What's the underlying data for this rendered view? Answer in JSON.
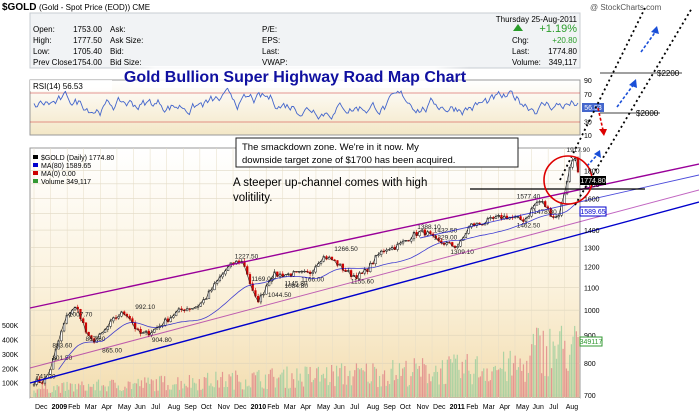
{
  "header": {
    "symbol_title": "$GOLD",
    "symbol_desc": "(Gold - Spot Price (EOD)) CME",
    "watermark": "@ StockCharts.com",
    "date": "Thursday 25-Aug-2011",
    "quote_left": [
      {
        "label": "Open:",
        "value": "1753.00"
      },
      {
        "label": "High:",
        "value": "1777.50"
      },
      {
        "label": "Low:",
        "value": "1705.40"
      },
      {
        "label": "Prev Close:",
        "value": "1754.00"
      }
    ],
    "quote_mid": [
      "Ask:",
      "Ask Size:",
      "Bid:",
      "Bid Size:"
    ],
    "quote_mid_values": [
      "",
      "",
      "",
      ""
    ],
    "quote_right_labels": [
      "P/E:",
      "EPS:",
      "Last:",
      "VWAP:"
    ],
    "change_pct": "+1.19%",
    "change_rows": [
      {
        "label": "Chg:",
        "value": "+20.80"
      },
      {
        "label": "Last:",
        "value": "1774.80"
      },
      {
        "label": "Volume:",
        "value": "349,117"
      }
    ]
  },
  "banner_title": "Gold Bullion Super Highway Road Map Chart",
  "rsi": {
    "label": "RSI(14) 56.53",
    "axis_ticks": [
      "90",
      "70",
      "50",
      "30",
      "10"
    ],
    "current_value": "56.53"
  },
  "price_legend": [
    {
      "text": "$GOLD (Daily) 1774.80",
      "color": "#000000"
    },
    {
      "text": "MA(80) 1589.65",
      "color": "#0000cc"
    },
    {
      "text": "MA(0) 0.00",
      "color": "#cc0000"
    },
    {
      "text": "Volume 349,117",
      "color": "#339933"
    }
  ],
  "annotations": {
    "smackdown_line1": "The smackdown zone.  We're in it now.  My",
    "smackdown_line2": "downside target zone of $1700 has been acquired.",
    "channel_line1": "A steeper up-channel comes with high",
    "channel_line2": "volitility.",
    "target_2200": "$2200",
    "target_2000": "$2000"
  },
  "price_axis": {
    "ticks": [
      "1800",
      "1700",
      "1600",
      "1500",
      "1400",
      "1300",
      "1200",
      "1100",
      "1000",
      "900",
      "800",
      "700"
    ],
    "last_badge": "1774.80",
    "ma_badge": "1589.65"
  },
  "volume_axis": {
    "ticks": [
      "500K",
      "400K",
      "300K",
      "200K",
      "100K"
    ],
    "badge": "349117"
  },
  "x_axis_labels": [
    "Dec",
    "2009",
    "Feb",
    "Mar",
    "Apr",
    "May",
    "Jun",
    "Jul",
    "Aug",
    "Sep",
    "Oct",
    "Nov",
    "Dec",
    "2010",
    "Feb",
    "Mar",
    "Apr",
    "May",
    "Jun",
    "Jul",
    "Aug",
    "Sep",
    "Oct",
    "Nov",
    "Dec",
    "2011",
    "Feb",
    "Mar",
    "Apr",
    "May",
    "Jun",
    "Jul",
    "Aug"
  ],
  "colors": {
    "price_panel_bg": "#faf0d8",
    "candle_up": "#ffffff",
    "candle_down": "#cc0000",
    "ma_line": "#0000cc",
    "channel_purple": "#990099",
    "channel_blue": "#0000cc",
    "rsi_line": "#4466cc",
    "highlight_red": "#dd0000"
  },
  "chart_data": {
    "type": "line",
    "title": "Gold Bullion Super Highway Road Map Chart",
    "subtitle": "$GOLD (Gold - Spot Price (EOD)) CME",
    "xlabel": "",
    "ylabel": "",
    "ylim": [
      700,
      1900
    ],
    "x": [
      "2008-12",
      "2009-02",
      "2009-03",
      "2009-05",
      "2009-06",
      "2009-09",
      "2009-12",
      "2010-01",
      "2010-02",
      "2010-04",
      "2010-05",
      "2010-07",
      "2010-09",
      "2010-11",
      "2010-12",
      "2011-01",
      "2011-02",
      "2011-04",
      "2011-05",
      "2011-06",
      "2011-07",
      "2011-08-22",
      "2011-08-25"
    ],
    "series": [
      {
        "name": "$GOLD",
        "values": [
          741.2,
          1007.7,
          880.0,
          987.0,
          904.8,
          1010.0,
          1227.5,
          1044.5,
          1160.0,
          1166.0,
          1249.0,
          1155.6,
          1300.0,
          1388.0,
          1329.0,
          1309.1,
          1432.5,
          1480.0,
          1462.5,
          1577.4,
          1478.3,
          1917.9,
          1774.8
        ]
      }
    ],
    "point_labels": [
      {
        "x": "2008-12",
        "value": 741.2,
        "label": "741.20"
      },
      {
        "x": "2009-01",
        "value": 883.6,
        "label": "883.60"
      },
      {
        "x": "2009-01",
        "value": 801.5,
        "label": "801.50"
      },
      {
        "x": "2009-02",
        "value": 1007.7,
        "label": "1007.70"
      },
      {
        "x": "2009-03",
        "value": 867.6,
        "label": "867.60"
      },
      {
        "x": "2009-04",
        "value": 865.0,
        "label": "865.00"
      },
      {
        "x": "2009-06",
        "value": 992.1,
        "label": "992.10"
      },
      {
        "x": "2009-07",
        "value": 904.8,
        "label": "904.80"
      },
      {
        "x": "2009-12",
        "value": 1227.5,
        "label": "1227.50"
      },
      {
        "x": "2010-01",
        "value": 1169.0,
        "label": "1169.00"
      },
      {
        "x": "2010-02",
        "value": 1044.5,
        "label": "1044.50"
      },
      {
        "x": "2010-03",
        "value": 1145.8,
        "label": "1145.80"
      },
      {
        "x": "2010-03",
        "value": 1084.8,
        "label": "1084.80"
      },
      {
        "x": "2010-04",
        "value": 1166.0,
        "label": "1166.00"
      },
      {
        "x": "2010-06",
        "value": 1266.5,
        "label": "1266.50"
      },
      {
        "x": "2010-07",
        "value": 1155.6,
        "label": "1155.60"
      },
      {
        "x": "2010-11",
        "value": 1388.1,
        "label": "1388.10"
      },
      {
        "x": "2010-12",
        "value": 1432.5,
        "label": "1432.50"
      },
      {
        "x": "2010-12",
        "value": 1329.0,
        "label": "1329.00"
      },
      {
        "x": "2011-01",
        "value": 1309.1,
        "label": "1309.10"
      },
      {
        "x": "2011-05",
        "value": 1577.4,
        "label": "1577.40"
      },
      {
        "x": "2011-05",
        "value": 1462.5,
        "label": "1462.50"
      },
      {
        "x": "2011-06",
        "value": 1478.3,
        "label": "1478.30"
      },
      {
        "x": "2011-08",
        "value": 1917.9,
        "label": "1917.90"
      }
    ],
    "ma80": {
      "label": "MA(80)",
      "last": 1589.65
    },
    "rsi14": {
      "label": "RSI(14)",
      "last": 56.53,
      "ylim": [
        10,
        90
      ],
      "guides": [
        70,
        30
      ]
    },
    "volume": {
      "label": "Volume",
      "last": 349117,
      "ylim": [
        0,
        550000
      ]
    },
    "channels": [
      {
        "name": "upper-purple",
        "color": "#990099"
      },
      {
        "name": "lower-blue",
        "color": "#0000cc"
      },
      {
        "name": "steep-up-channel",
        "color": "#000000",
        "style": "dotted"
      }
    ],
    "targets": [
      2200,
      2000
    ],
    "grid": true,
    "legend": "top-left"
  }
}
